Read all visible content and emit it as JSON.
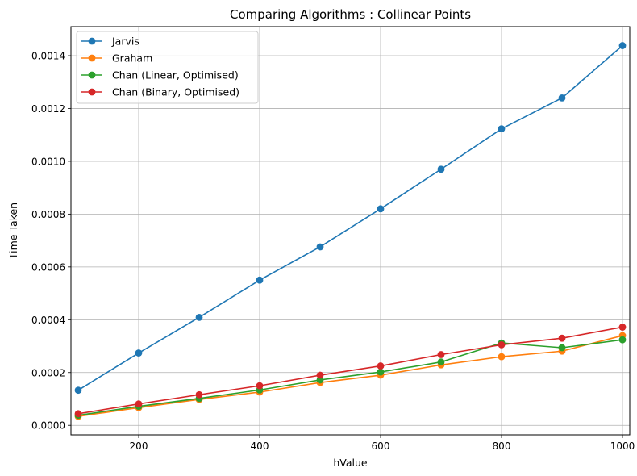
{
  "chart_data": {
    "type": "line",
    "title": "Comparing Algorithms : Collinear Points",
    "xlabel": "hValue",
    "ylabel": "Time Taken",
    "xlim": [
      88,
      1012
    ],
    "ylim": [
      -3.6e-05,
      0.00151
    ],
    "xticks": [
      200,
      400,
      600,
      800,
      1000
    ],
    "xtick_labels": [
      "200",
      "400",
      "600",
      "800",
      "1000"
    ],
    "yticks": [
      0,
      0.0002,
      0.0004,
      0.0006,
      0.0008,
      0.001,
      0.0012,
      0.0014
    ],
    "ytick_labels": [
      "0.0000",
      "0.0002",
      "0.0004",
      "0.0006",
      "0.0008",
      "0.0010",
      "0.0012",
      "0.0014"
    ],
    "grid": true,
    "legend_position": "top-left",
    "x": [
      100,
      200,
      300,
      400,
      500,
      600,
      700,
      800,
      900,
      1000
    ],
    "series": [
      {
        "name": "Jarvis",
        "color": "#1f77b4",
        "marker": "circle",
        "values": [
          0.000133,
          0.000274,
          0.000409,
          0.00055,
          0.000676,
          0.00082,
          0.00097,
          0.001123,
          0.00124,
          0.001438
        ]
      },
      {
        "name": "Graham",
        "color": "#ff7f0e",
        "marker": "circle",
        "values": [
          3.4e-05,
          6.7e-05,
          9.8e-05,
          0.000126,
          0.000162,
          0.00019,
          0.000229,
          0.00026,
          0.000281,
          0.00034
        ]
      },
      {
        "name": "Chan (Linear, Optimised)",
        "color": "#2ca02c",
        "marker": "circle",
        "values": [
          3.8e-05,
          7.2e-05,
          0.000102,
          0.000134,
          0.000172,
          0.000202,
          0.00024,
          0.000312,
          0.000294,
          0.000324
        ]
      },
      {
        "name": "Chan (Binary, Optimised)",
        "color": "#d62728",
        "marker": "circle",
        "values": [
          4.4e-05,
          8.1e-05,
          0.000116,
          0.00015,
          0.00019,
          0.000225,
          0.000268,
          0.000305,
          0.00033,
          0.000372
        ]
      }
    ]
  }
}
